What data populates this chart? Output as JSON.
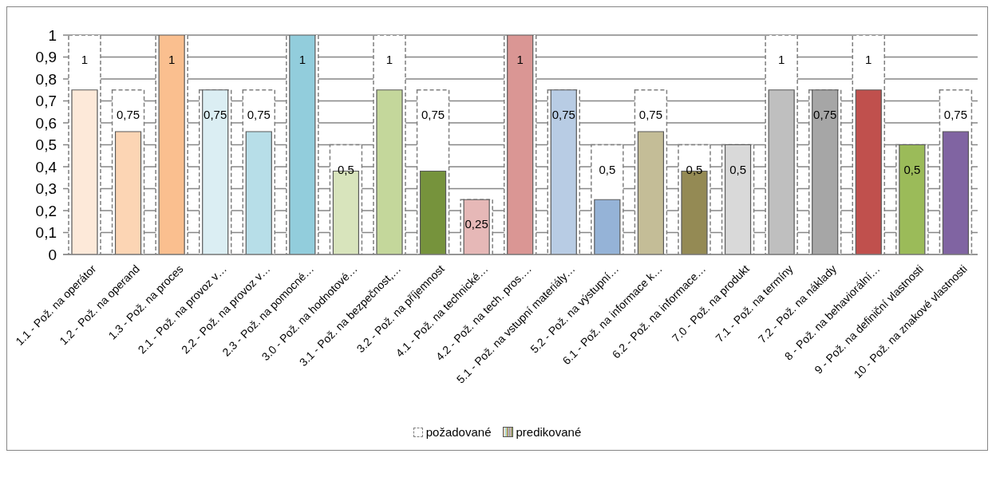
{
  "chart_data": {
    "type": "bar",
    "categories": [
      "1.1 - Pož. na operátor",
      "1.2 - Pož. na operand",
      "1.3 - Pož. na proces",
      "2.1 - Pož. na provoz v…",
      "2.2 - Pož. na provoz v…",
      "2.3 - Pož. na pomocné…",
      "3.0 - Pož. na hodnotové…",
      "3.1 - Pož. na bezpečnost,…",
      "3.2 - Pož. na příjemnost",
      "4.1 - Pož. na technické…",
      "4.2 - Pož. na tech. pros.…",
      "5.1 - Pož. na vstupní materiály…",
      "5.2 - Pož. na výstupní…",
      "6.1 - Pož. na informace k…",
      "6.2 - Pož. na informace…",
      "7.0 - Pož. na produkt",
      "7.1 - Pož. na termíny",
      "7.2 - Pož. na náklady",
      "8 - Pož. na behaviorální…",
      "9 - Pož. na definiční vlastnosti",
      "10 - Pož. na znakové vlastnosti"
    ],
    "series": [
      {
        "name": "požadované",
        "color": "#ffffff",
        "values": [
          1,
          0.75,
          1,
          0.75,
          0.75,
          1,
          0.5,
          1,
          0.75,
          0.25,
          1,
          0.75,
          0.5,
          0.75,
          0.5,
          0.5,
          1,
          0.75,
          1,
          0.5,
          0.75
        ],
        "value_labels": [
          "1",
          "0,75",
          "1",
          "0,75",
          "0,75",
          "1",
          "0,5",
          "1",
          "0,75",
          "0,25",
          "1",
          "0,75",
          "0,5",
          "0,75",
          "0,5",
          "0,5",
          "1",
          "0,75",
          "1",
          "0,5",
          "0,75"
        ]
      },
      {
        "name": "predikované",
        "colors": [
          "#fde9d9",
          "#fcd5b4",
          "#fabf8f",
          "#dbeef3",
          "#b7dee8",
          "#92cddc",
          "#d8e4bc",
          "#c4d79b",
          "#76933c",
          "#e6b8b7",
          "#da9694",
          "#b8cce4",
          "#95b3d7",
          "#c4bd97",
          "#948a54",
          "#d9d9d9",
          "#bfbfbf",
          "#a6a6a6",
          "#c0504d",
          "#9bbb59",
          "#8064a2"
        ],
        "values": [
          0.75,
          0.56,
          1,
          0.75,
          0.56,
          1,
          0.38,
          0.75,
          0.38,
          0.25,
          1,
          0.75,
          0.25,
          0.56,
          0.38,
          0.5,
          0.75,
          0.75,
          0.75,
          0.5,
          0.56
        ]
      }
    ],
    "ylim": [
      0,
      1
    ],
    "yticks": [
      0,
      {
        "value": 0.1,
        "label": "0,1"
      },
      {
        "value": 0.2,
        "label": "0,2"
      },
      {
        "value": 0.3,
        "label": "0,3"
      },
      {
        "value": 0.4,
        "label": "0,4"
      },
      {
        "value": 0.5,
        "label": "0,5"
      },
      {
        "value": 0.6,
        "label": "0,6"
      },
      {
        "value": 0.7,
        "label": "0,7"
      },
      {
        "value": 0.8,
        "label": "0,8"
      },
      {
        "value": 0.9,
        "label": "0,9"
      },
      1
    ],
    "grid": "y",
    "legend": "bottom"
  }
}
